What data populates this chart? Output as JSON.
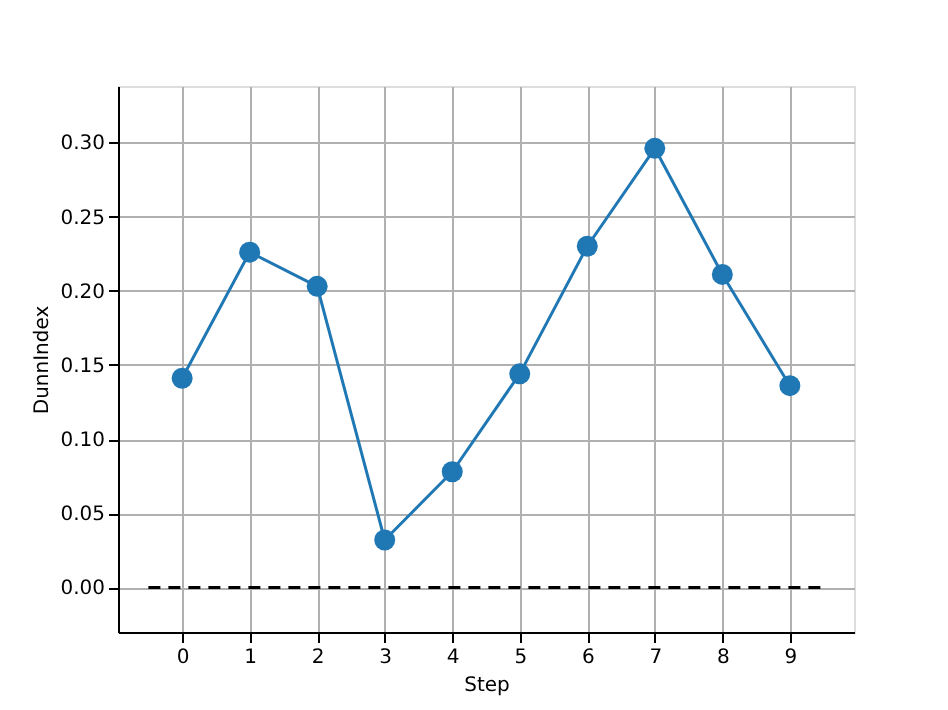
{
  "chart_data": {
    "type": "line",
    "xlabel": "Step",
    "ylabel": "DunnIndex",
    "x": [
      0,
      1,
      2,
      3,
      4,
      5,
      6,
      7,
      8,
      9
    ],
    "series": [
      {
        "color": "#1f77b4",
        "values": [
          0.141,
          0.226,
          0.203,
          0.032,
          0.078,
          0.144,
          0.23,
          0.296,
          0.211,
          0.136
        ],
        "marker": "circle",
        "line_style": "solid"
      },
      {
        "color": "#000000",
        "x": [
          -0.5,
          9.5
        ],
        "values": [
          0,
          0
        ],
        "marker": "none",
        "line_style": "dashed"
      }
    ],
    "xlim": [
      -0.95,
      9.95
    ],
    "xticks": [
      0,
      1,
      2,
      3,
      4,
      5,
      6,
      7,
      8,
      9
    ],
    "ylim": [
      -0.03,
      0.338
    ],
    "yticks": [
      {
        "value": 0,
        "label": "0.00"
      },
      {
        "value": 0.05,
        "label": "0.05"
      },
      {
        "value": 0.1,
        "label": "0.10"
      },
      {
        "value": 0.15,
        "label": "0.15"
      },
      {
        "value": 0.2,
        "label": "0.20"
      },
      {
        "value": 0.25,
        "label": "0.25"
      },
      {
        "value": 0.3,
        "label": "0.30"
      }
    ],
    "grid": true
  }
}
